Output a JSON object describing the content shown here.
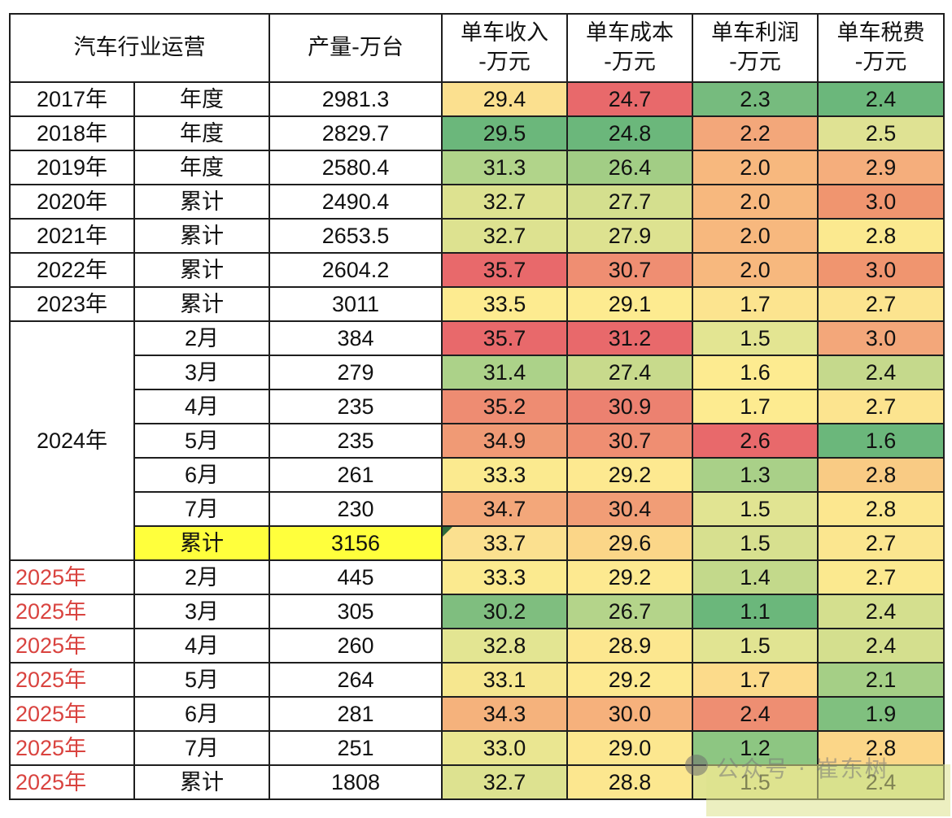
{
  "table": {
    "title": "汽车行业运营",
    "headers": {
      "volume": "产量-万台",
      "revenue_l1": "单车收入",
      "revenue_l2": "-万元",
      "cost_l1": "单车成本",
      "cost_l2": "-万元",
      "profit_l1": "单车利润",
      "profit_l2": "-万元",
      "tax_l1": "单车税费",
      "tax_l2": "-万元"
    },
    "rows": [
      {
        "year": "2017年",
        "period": "年度",
        "volume": "2981.3",
        "revenue": "29.4",
        "cost": "24.7",
        "profit": "2.3",
        "tax": "2.4",
        "colors": [
          "#fbe08f",
          "#e8696b",
          "#76bb7e",
          "#6bb77b"
        ]
      },
      {
        "year": "2018年",
        "period": "年度",
        "volume": "2829.7",
        "revenue": "29.5",
        "cost": "24.8",
        "profit": "2.2",
        "tax": "2.5",
        "colors": [
          "#6bb77b",
          "#6bb77b",
          "#f3a77a",
          "#dfe293"
        ]
      },
      {
        "year": "2019年",
        "period": "年度",
        "volume": "2580.4",
        "revenue": "31.3",
        "cost": "26.4",
        "profit": "2.0",
        "tax": "2.9",
        "colors": [
          "#b1d48a",
          "#a2cd85",
          "#f7b87e",
          "#f5ae7c"
        ]
      },
      {
        "year": "2020年",
        "period": "累计",
        "volume": "2490.4",
        "revenue": "32.7",
        "cost": "27.7",
        "profit": "2.0",
        "tax": "3.0",
        "colors": [
          "#dde290",
          "#d4df8e",
          "#f7b87e",
          "#f0956f"
        ]
      },
      {
        "year": "2021年",
        "period": "累计",
        "volume": "2653.5",
        "revenue": "32.7",
        "cost": "27.9",
        "profit": "2.0",
        "tax": "2.8",
        "colors": [
          "#dde290",
          "#dde290",
          "#f7b87e",
          "#fbe98f"
        ]
      },
      {
        "year": "2022年",
        "period": "累计",
        "volume": "2604.2",
        "revenue": "35.7",
        "cost": "30.7",
        "profit": "2.0",
        "tax": "3.0",
        "colors": [
          "#e8696b",
          "#ef8e72",
          "#f7b87e",
          "#f0956f"
        ]
      },
      {
        "year": "2023年",
        "period": "累计",
        "volume": "3011",
        "revenue": "33.5",
        "cost": "29.1",
        "profit": "1.7",
        "tax": "2.7",
        "colors": [
          "#fdeb90",
          "#fdeb90",
          "#fce48f",
          "#fce48f"
        ]
      }
    ],
    "group_2024": {
      "year": "2024年",
      "rows": [
        {
          "period": "2月",
          "volume": "384",
          "revenue": "35.7",
          "cost": "31.2",
          "profit": "1.5",
          "tax": "3.0",
          "colors": [
            "#e8696b",
            "#e8696b",
            "#e3e592",
            "#f3a77a"
          ]
        },
        {
          "period": "3月",
          "volume": "279",
          "revenue": "31.4",
          "cost": "27.4",
          "profit": "1.6",
          "tax": "2.4",
          "colors": [
            "#acd289",
            "#c8da8c",
            "#fdeb90",
            "#c5d98c"
          ]
        },
        {
          "period": "4月",
          "volume": "235",
          "revenue": "35.2",
          "cost": "30.9",
          "profit": "1.7",
          "tax": "2.7",
          "colors": [
            "#ee8c72",
            "#ec8170",
            "#fdeb90",
            "#fce48f"
          ]
        },
        {
          "period": "5月",
          "volume": "235",
          "revenue": "34.9",
          "cost": "30.7",
          "profit": "2.6",
          "tax": "1.6",
          "colors": [
            "#f09a75",
            "#ef8e72",
            "#e8696b",
            "#6bb77b"
          ]
        },
        {
          "period": "6月",
          "volume": "261",
          "revenue": "33.3",
          "cost": "29.2",
          "profit": "1.3",
          "tax": "2.8",
          "colors": [
            "#fbea8f",
            "#fde990",
            "#a9d088",
            "#f9cb84"
          ]
        },
        {
          "period": "7月",
          "volume": "230",
          "revenue": "34.7",
          "cost": "30.4",
          "profit": "1.5",
          "tax": "2.8",
          "colors": [
            "#f3a77a",
            "#f19d76",
            "#e1e492",
            "#fce78f"
          ]
        },
        {
          "period": "累计",
          "volume": "3156",
          "revenue": "33.7",
          "cost": "29.6",
          "profit": "1.5",
          "tax": "2.7",
          "colors": [
            "#fbe08f",
            "#fbd688",
            "#d7e08f",
            "#fbe68f"
          ],
          "highlight": true
        }
      ]
    },
    "rows_2025": [
      {
        "year": "2025年",
        "period": "2月",
        "volume": "445",
        "revenue": "33.3",
        "cost": "29.2",
        "profit": "1.4",
        "tax": "2.7",
        "colors": [
          "#fbea8f",
          "#fde990",
          "#c3d98b",
          "#fbe98f"
        ]
      },
      {
        "year": "2025年",
        "period": "3月",
        "volume": "305",
        "revenue": "30.2",
        "cost": "26.7",
        "profit": "1.1",
        "tax": "2.4",
        "colors": [
          "#7fbe7f",
          "#b4d48a",
          "#6bb77b",
          "#d4df8e"
        ]
      },
      {
        "year": "2025年",
        "period": "4月",
        "volume": "260",
        "revenue": "32.8",
        "cost": "28.9",
        "profit": "1.5",
        "tax": "2.4",
        "colors": [
          "#e3e592",
          "#fce78f",
          "#e1e492",
          "#d4df8e"
        ]
      },
      {
        "year": "2025年",
        "period": "5月",
        "volume": "264",
        "revenue": "33.1",
        "cost": "29.2",
        "profit": "1.7",
        "tax": "2.1",
        "colors": [
          "#f6e78f",
          "#fde990",
          "#fcdb8b",
          "#a5cf86"
        ]
      },
      {
        "year": "2025年",
        "period": "6月",
        "volume": "281",
        "revenue": "34.3",
        "cost": "30.0",
        "profit": "2.4",
        "tax": "1.9",
        "colors": [
          "#f5b27c",
          "#f6b17c",
          "#ee8e72",
          "#80c07f"
        ]
      },
      {
        "year": "2025年",
        "period": "7月",
        "volume": "251",
        "revenue": "33.0",
        "cost": "29.0",
        "profit": "1.2",
        "tax": "2.8",
        "colors": [
          "#eae691",
          "#fce78f",
          "#8dc682",
          "#fbd688"
        ]
      },
      {
        "year": "2025年",
        "period": "累计",
        "volume": "1808",
        "revenue": "32.7",
        "cost": "28.8",
        "profit": "1.5",
        "tax": "2.4",
        "colors": [
          "#dde290",
          "#fce78f",
          "#e1e492",
          "#d4df8e"
        ]
      }
    ]
  },
  "watermark": {
    "text": "公众号 · 崔东树"
  }
}
